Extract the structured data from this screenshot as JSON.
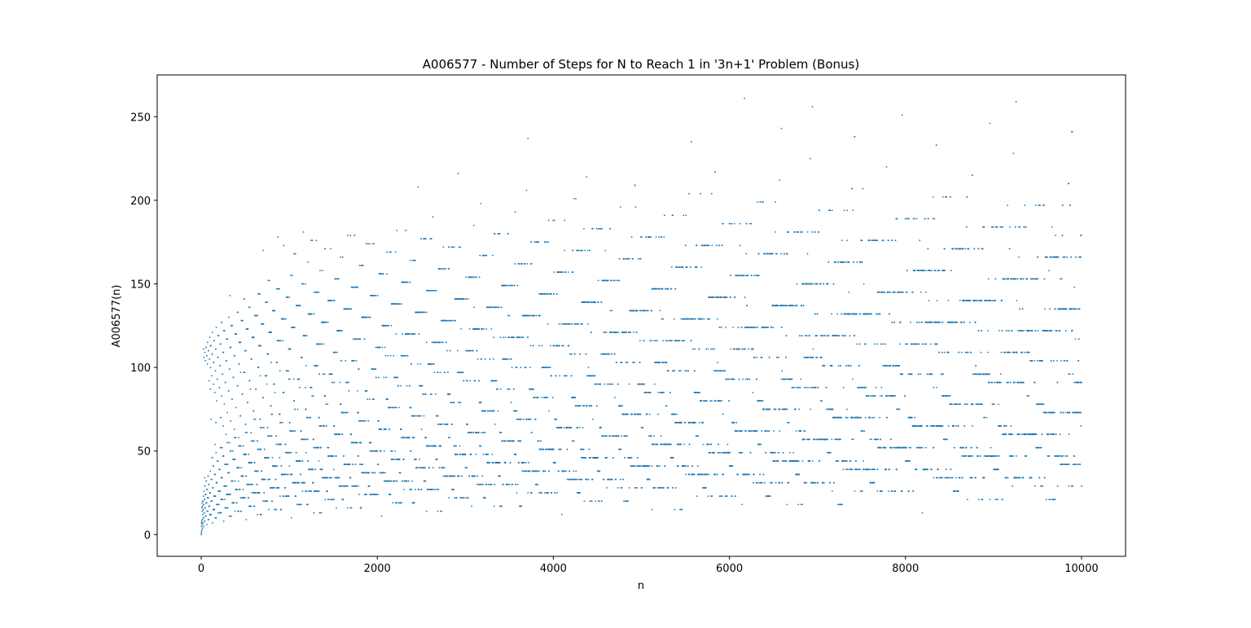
{
  "chart_data": {
    "type": "scatter",
    "title": "A006577 - Number of Steps for N to Reach 1 in '3n+1' Problem (Bonus)",
    "xlabel": "n",
    "ylabel": "A006577(n)",
    "xlim": [
      -500,
      10500
    ],
    "ylim": [
      -13,
      275
    ],
    "xticks": [
      0,
      2000,
      4000,
      6000,
      8000,
      10000
    ],
    "xtick_labels": [
      "0",
      "2000",
      "4000",
      "6000",
      "8000",
      "10000"
    ],
    "yticks": [
      0,
      50,
      100,
      150,
      200,
      250
    ],
    "ytick_labels": [
      "0",
      "50",
      "100",
      "150",
      "200",
      "250"
    ],
    "grid": false,
    "legend": "none",
    "marker_color": "#1f77b4",
    "series": [
      {
        "sequence": "A006577",
        "n_start": 1,
        "n_end": 10000
      }
    ]
  }
}
